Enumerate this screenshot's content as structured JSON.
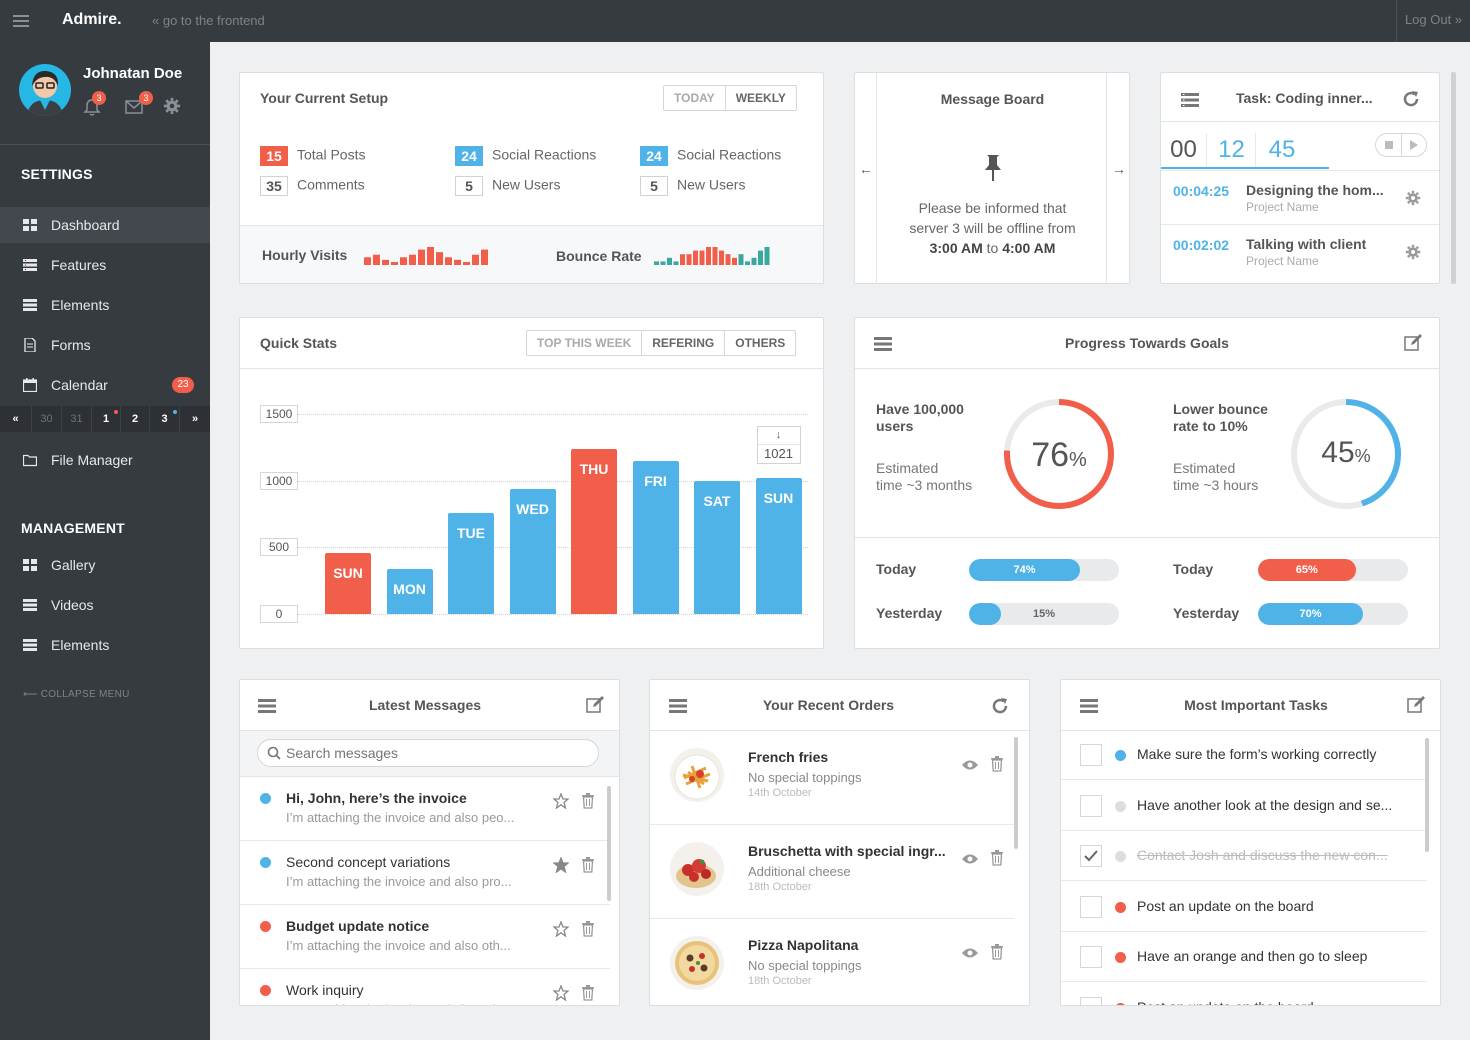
{
  "topbar": {
    "brand": "Admire.",
    "frontend_link": "« go to the frontend",
    "logout": "Log Out »"
  },
  "profile": {
    "name": "Johnatan Doe",
    "notifications": "3",
    "messages": "3"
  },
  "sidebar": {
    "settings_heading": "SETTINGS",
    "items": [
      {
        "label": "Dashboard",
        "icon": "grid-icon"
      },
      {
        "label": "Features",
        "icon": "list-icon"
      },
      {
        "label": "Elements",
        "icon": "list-icon"
      },
      {
        "label": "Forms",
        "icon": "document-icon"
      },
      {
        "label": "Calendar",
        "icon": "calendar-icon",
        "badge": "23"
      }
    ],
    "calendar_strip": [
      "«",
      "30",
      "31",
      "1",
      "2",
      "3",
      "»"
    ],
    "file_manager": "File Manager",
    "management_heading": "MANAGEMENT",
    "management_items": [
      {
        "label": "Gallery",
        "icon": "grid-icon"
      },
      {
        "label": "Videos",
        "icon": "list-icon"
      },
      {
        "label": "Elements",
        "icon": "list-icon"
      }
    ],
    "collapse": "COLLAPSE MENU"
  },
  "setup": {
    "title": "Your Current Setup",
    "tabs": [
      "TODAY",
      "WEEKLY"
    ],
    "stats": [
      {
        "value": "15",
        "label": "Total Posts",
        "style": "red"
      },
      {
        "value": "35",
        "label": "Comments",
        "style": "gray"
      },
      {
        "value": "24",
        "label": "Social Reactions",
        "style": "blue"
      },
      {
        "value": "5",
        "label": "New Users",
        "style": "gray"
      },
      {
        "value": "24",
        "label": "Social Reactions",
        "style": "blue"
      },
      {
        "value": "5",
        "label": "New Users",
        "style": "gray"
      }
    ],
    "hourly_label": "Hourly Visits",
    "bounce_label": "Bounce Rate",
    "hourly_values": [
      3,
      4,
      2,
      1,
      3,
      4,
      6,
      7,
      5,
      3,
      2,
      1,
      4,
      6
    ],
    "bounce_values": [
      1,
      1,
      2,
      1,
      3,
      3,
      4,
      4,
      5,
      5,
      4,
      3,
      2,
      3,
      1,
      2,
      4,
      5
    ]
  },
  "message_board": {
    "title": "Message Board",
    "line1": "Please be informed that",
    "line2": "server 3 will be offline from",
    "time_from": "3:00 AM",
    "to": "to",
    "time_to": "4:00 AM",
    "prev": "←",
    "next": "→"
  },
  "task_timer": {
    "title": "Task: Coding inner...",
    "hours": "00",
    "minutes": "12",
    "seconds": "45",
    "entries": [
      {
        "time": "00:04:25",
        "title": "Designing the hom...",
        "project": "Project Name"
      },
      {
        "time": "00:02:02",
        "title": "Talking with client",
        "project": "Project Name"
      }
    ]
  },
  "quick_stats": {
    "title": "Quick Stats",
    "tabs": [
      "TOP THIS WEEK",
      "REFERING",
      "OTHERS"
    ],
    "tooltip_arrow": "↓"
  },
  "chart_data": {
    "type": "bar",
    "categories": [
      "SUN",
      "MON",
      "TUE",
      "WED",
      "THU",
      "FRI",
      "SAT",
      "SUN"
    ],
    "values": [
      460,
      340,
      760,
      940,
      1240,
      1150,
      1000,
      1021
    ],
    "highlight": [
      true,
      false,
      false,
      false,
      true,
      false,
      false,
      false
    ],
    "yticks": [
      0,
      500,
      1000,
      1500
    ],
    "ylim": [
      0,
      1500
    ],
    "tooltip_value": "1021",
    "colors": {
      "highlight": "#f15f4b",
      "normal": "#4fb3e8"
    }
  },
  "goals": {
    "title": "Progress Towards Goals",
    "items": [
      {
        "title_line1": "Have 100,000",
        "title_line2": "users",
        "est_line1": "Estimated",
        "est_line2": "time ~3 months",
        "value": "76",
        "unit": "%",
        "fraction": 0.76,
        "color": "#f15f4b"
      },
      {
        "title_line1": "Lower bounce",
        "title_line2": "rate to 10%",
        "est_line1": "Estimated",
        "est_line2": "time ~3 hours",
        "value": "45",
        "unit": "%",
        "fraction": 0.45,
        "color": "#4fb3e8"
      }
    ],
    "bars": [
      {
        "label": "Today",
        "text": "74%",
        "fraction": 0.74,
        "color": "#4fb3e8"
      },
      {
        "label": "Yesterday",
        "text": "15%",
        "fraction": 0.15,
        "color": "#4fb3e8"
      },
      {
        "label": "Today",
        "text": "65%",
        "fraction": 0.65,
        "color": "#f15f4b"
      },
      {
        "label": "Yesterday",
        "text": "70%",
        "fraction": 0.7,
        "color": "#4fb3e8"
      }
    ]
  },
  "messages": {
    "title": "Latest Messages",
    "search_placeholder": "Search messages",
    "items": [
      {
        "title": "Hi, John, here’s the invoice",
        "snippet": "I’m attaching the invoice and also peo...",
        "dot": "#4fb3e8",
        "bold": true,
        "starred": false
      },
      {
        "title": "Second concept variations",
        "snippet": "I’m attaching the invoice and also pro...",
        "dot": "#4fb3e8",
        "bold": false,
        "starred": true
      },
      {
        "title": "Budget update notice",
        "snippet": "I’m attaching the invoice and also oth...",
        "dot": "#f15f4b",
        "bold": true,
        "starred": false
      },
      {
        "title": "Work inquiry",
        "snippet": "I’m attaching the invoice and also oth...",
        "dot": "#f15f4b",
        "bold": false,
        "starred": false
      }
    ]
  },
  "orders": {
    "title": "Your Recent Orders",
    "items": [
      {
        "name": "French fries",
        "detail": "No special toppings",
        "date": "14th October"
      },
      {
        "name": "Bruschetta with special ingr...",
        "detail": "Additional cheese",
        "date": "18th October"
      },
      {
        "name": "Pizza Napolitana",
        "detail": "No special toppings",
        "date": "18th October"
      }
    ]
  },
  "tasks": {
    "title": "Most Important Tasks",
    "items": [
      {
        "text": "Make sure the form’s working correctly",
        "dot": "#4fb3e8",
        "done": false
      },
      {
        "text": "Have another look at the design and se...",
        "dot": "#dddddd",
        "done": false
      },
      {
        "text": "Contact Josh and discuss the new con...",
        "dot": "#dddddd",
        "done": true
      },
      {
        "text": "Post an update on the board",
        "dot": "#f15f4b",
        "done": false
      },
      {
        "text": "Have an orange and then go to sleep",
        "dot": "#f15f4b",
        "done": false
      },
      {
        "text": "Post an update on the board",
        "dot": "#f15f4b",
        "done": false
      }
    ]
  }
}
